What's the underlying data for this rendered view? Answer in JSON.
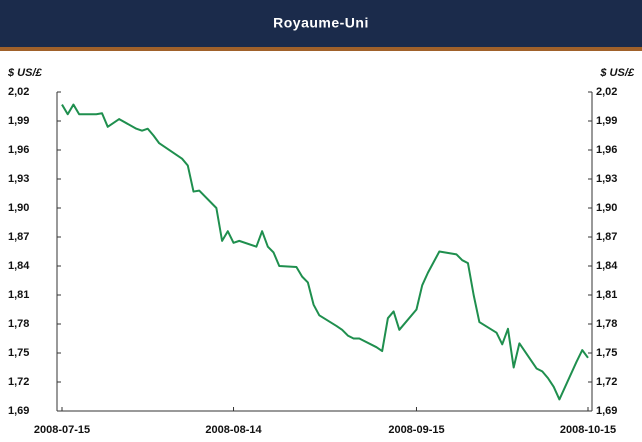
{
  "chart_data": {
    "type": "line",
    "title": "Royaume-Uni",
    "y_label": "$ US/£",
    "y2_label": "$ US/£",
    "x": [
      "2008-07-15",
      "2008-07-16",
      "2008-07-17",
      "2008-07-18",
      "2008-07-21",
      "2008-07-22",
      "2008-07-23",
      "2008-07-24",
      "2008-07-25",
      "2008-07-28",
      "2008-07-29",
      "2008-07-30",
      "2008-07-31",
      "2008-08-01",
      "2008-08-04",
      "2008-08-05",
      "2008-08-06",
      "2008-08-07",
      "2008-08-08",
      "2008-08-11",
      "2008-08-12",
      "2008-08-13",
      "2008-08-14",
      "2008-08-15",
      "2008-08-18",
      "2008-08-19",
      "2008-08-20",
      "2008-08-21",
      "2008-08-22",
      "2008-08-25",
      "2008-08-26",
      "2008-08-27",
      "2008-08-28",
      "2008-08-29",
      "2008-09-01",
      "2008-09-02",
      "2008-09-03",
      "2008-09-04",
      "2008-09-05",
      "2008-09-08",
      "2008-09-09",
      "2008-09-10",
      "2008-09-11",
      "2008-09-12",
      "2008-09-15",
      "2008-09-16",
      "2008-09-17",
      "2008-09-18",
      "2008-09-19",
      "2008-09-22",
      "2008-09-23",
      "2008-09-24",
      "2008-09-25",
      "2008-09-26",
      "2008-09-29",
      "2008-09-30",
      "2008-10-01",
      "2008-10-02",
      "2008-10-03",
      "2008-10-06",
      "2008-10-07",
      "2008-10-08",
      "2008-10-09",
      "2008-10-10",
      "2008-10-13",
      "2008-10-14",
      "2008-10-15"
    ],
    "series": [
      {
        "name": "Royaume-Uni",
        "color": "#1f8f4e",
        "values": [
          2.007,
          1.997,
          2.007,
          1.997,
          1.997,
          1.998,
          1.984,
          1.988,
          1.992,
          1.982,
          1.98,
          1.982,
          1.975,
          1.967,
          1.955,
          1.951,
          1.944,
          1.917,
          1.918,
          1.9,
          1.866,
          1.876,
          1.864,
          1.866,
          1.86,
          1.876,
          1.86,
          1.854,
          1.84,
          1.839,
          1.829,
          1.823,
          1.8,
          1.789,
          1.778,
          1.774,
          1.768,
          1.765,
          1.765,
          1.756,
          1.752,
          1.786,
          1.793,
          1.774,
          1.795,
          1.82,
          1.833,
          1.844,
          1.855,
          1.852,
          1.846,
          1.843,
          1.81,
          1.782,
          1.771,
          1.759,
          1.775,
          1.735,
          1.76,
          1.734,
          1.731,
          1.724,
          1.715,
          1.702,
          1.741,
          1.753,
          1.745
        ]
      }
    ],
    "xlim": [
      "2008-07-15",
      "2008-10-15"
    ],
    "xticks": [
      "2008-07-15",
      "2008-08-14",
      "2008-09-15",
      "2008-10-15"
    ],
    "ylim": [
      1.69,
      2.02
    ],
    "yticks": [
      {
        "value": 1.69,
        "label": "1,69"
      },
      {
        "value": 1.72,
        "label": "1,72"
      },
      {
        "value": 1.75,
        "label": "1,75"
      },
      {
        "value": 1.78,
        "label": "1,78"
      },
      {
        "value": 1.81,
        "label": "1,81"
      },
      {
        "value": 1.84,
        "label": "1,84"
      },
      {
        "value": 1.87,
        "label": "1,87"
      },
      {
        "value": 1.9,
        "label": "1,90"
      },
      {
        "value": 1.93,
        "label": "1,93"
      },
      {
        "value": 1.96,
        "label": "1,96"
      },
      {
        "value": 1.99,
        "label": "1,99"
      },
      {
        "value": 2.02,
        "label": "2,02"
      }
    ],
    "grid": false
  }
}
